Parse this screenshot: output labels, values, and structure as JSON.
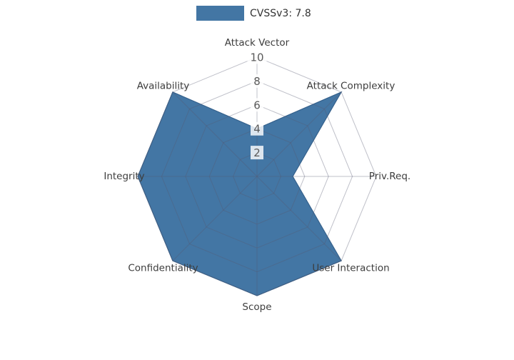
{
  "page": {
    "background": "#ffffff"
  },
  "chart_data": {
    "type": "radar",
    "title": "",
    "legend": [
      {
        "label": "CVSSv3: 7.8",
        "color": "#4376A4"
      }
    ],
    "legend_position": "top-center",
    "categories": [
      "Attack Vector",
      "Attack Complexity",
      "Priv.Req.",
      "User Interaction",
      "Scope",
      "Confidentiality",
      "Integrity",
      "Availability"
    ],
    "series": [
      {
        "name": "CVSSv3: 7.8",
        "values": [
          4,
          10,
          3,
          10,
          10,
          10,
          10,
          10
        ],
        "fill_color": "#4376A4",
        "edge_color": "#35618C",
        "fill_opacity": 1
      }
    ],
    "axis": {
      "rmin": 0,
      "rmax": 10,
      "ticks": [
        2,
        4,
        6,
        8,
        10
      ],
      "tick_label_color": "#5a5a5a",
      "tick_label_bg": "#ffffff"
    },
    "category_label_color": "#3d3d3d",
    "grid": {
      "show": true,
      "shape": "polygon",
      "color": "#565A70"
    },
    "angle_start_deg": -90,
    "direction": "clockwise"
  }
}
